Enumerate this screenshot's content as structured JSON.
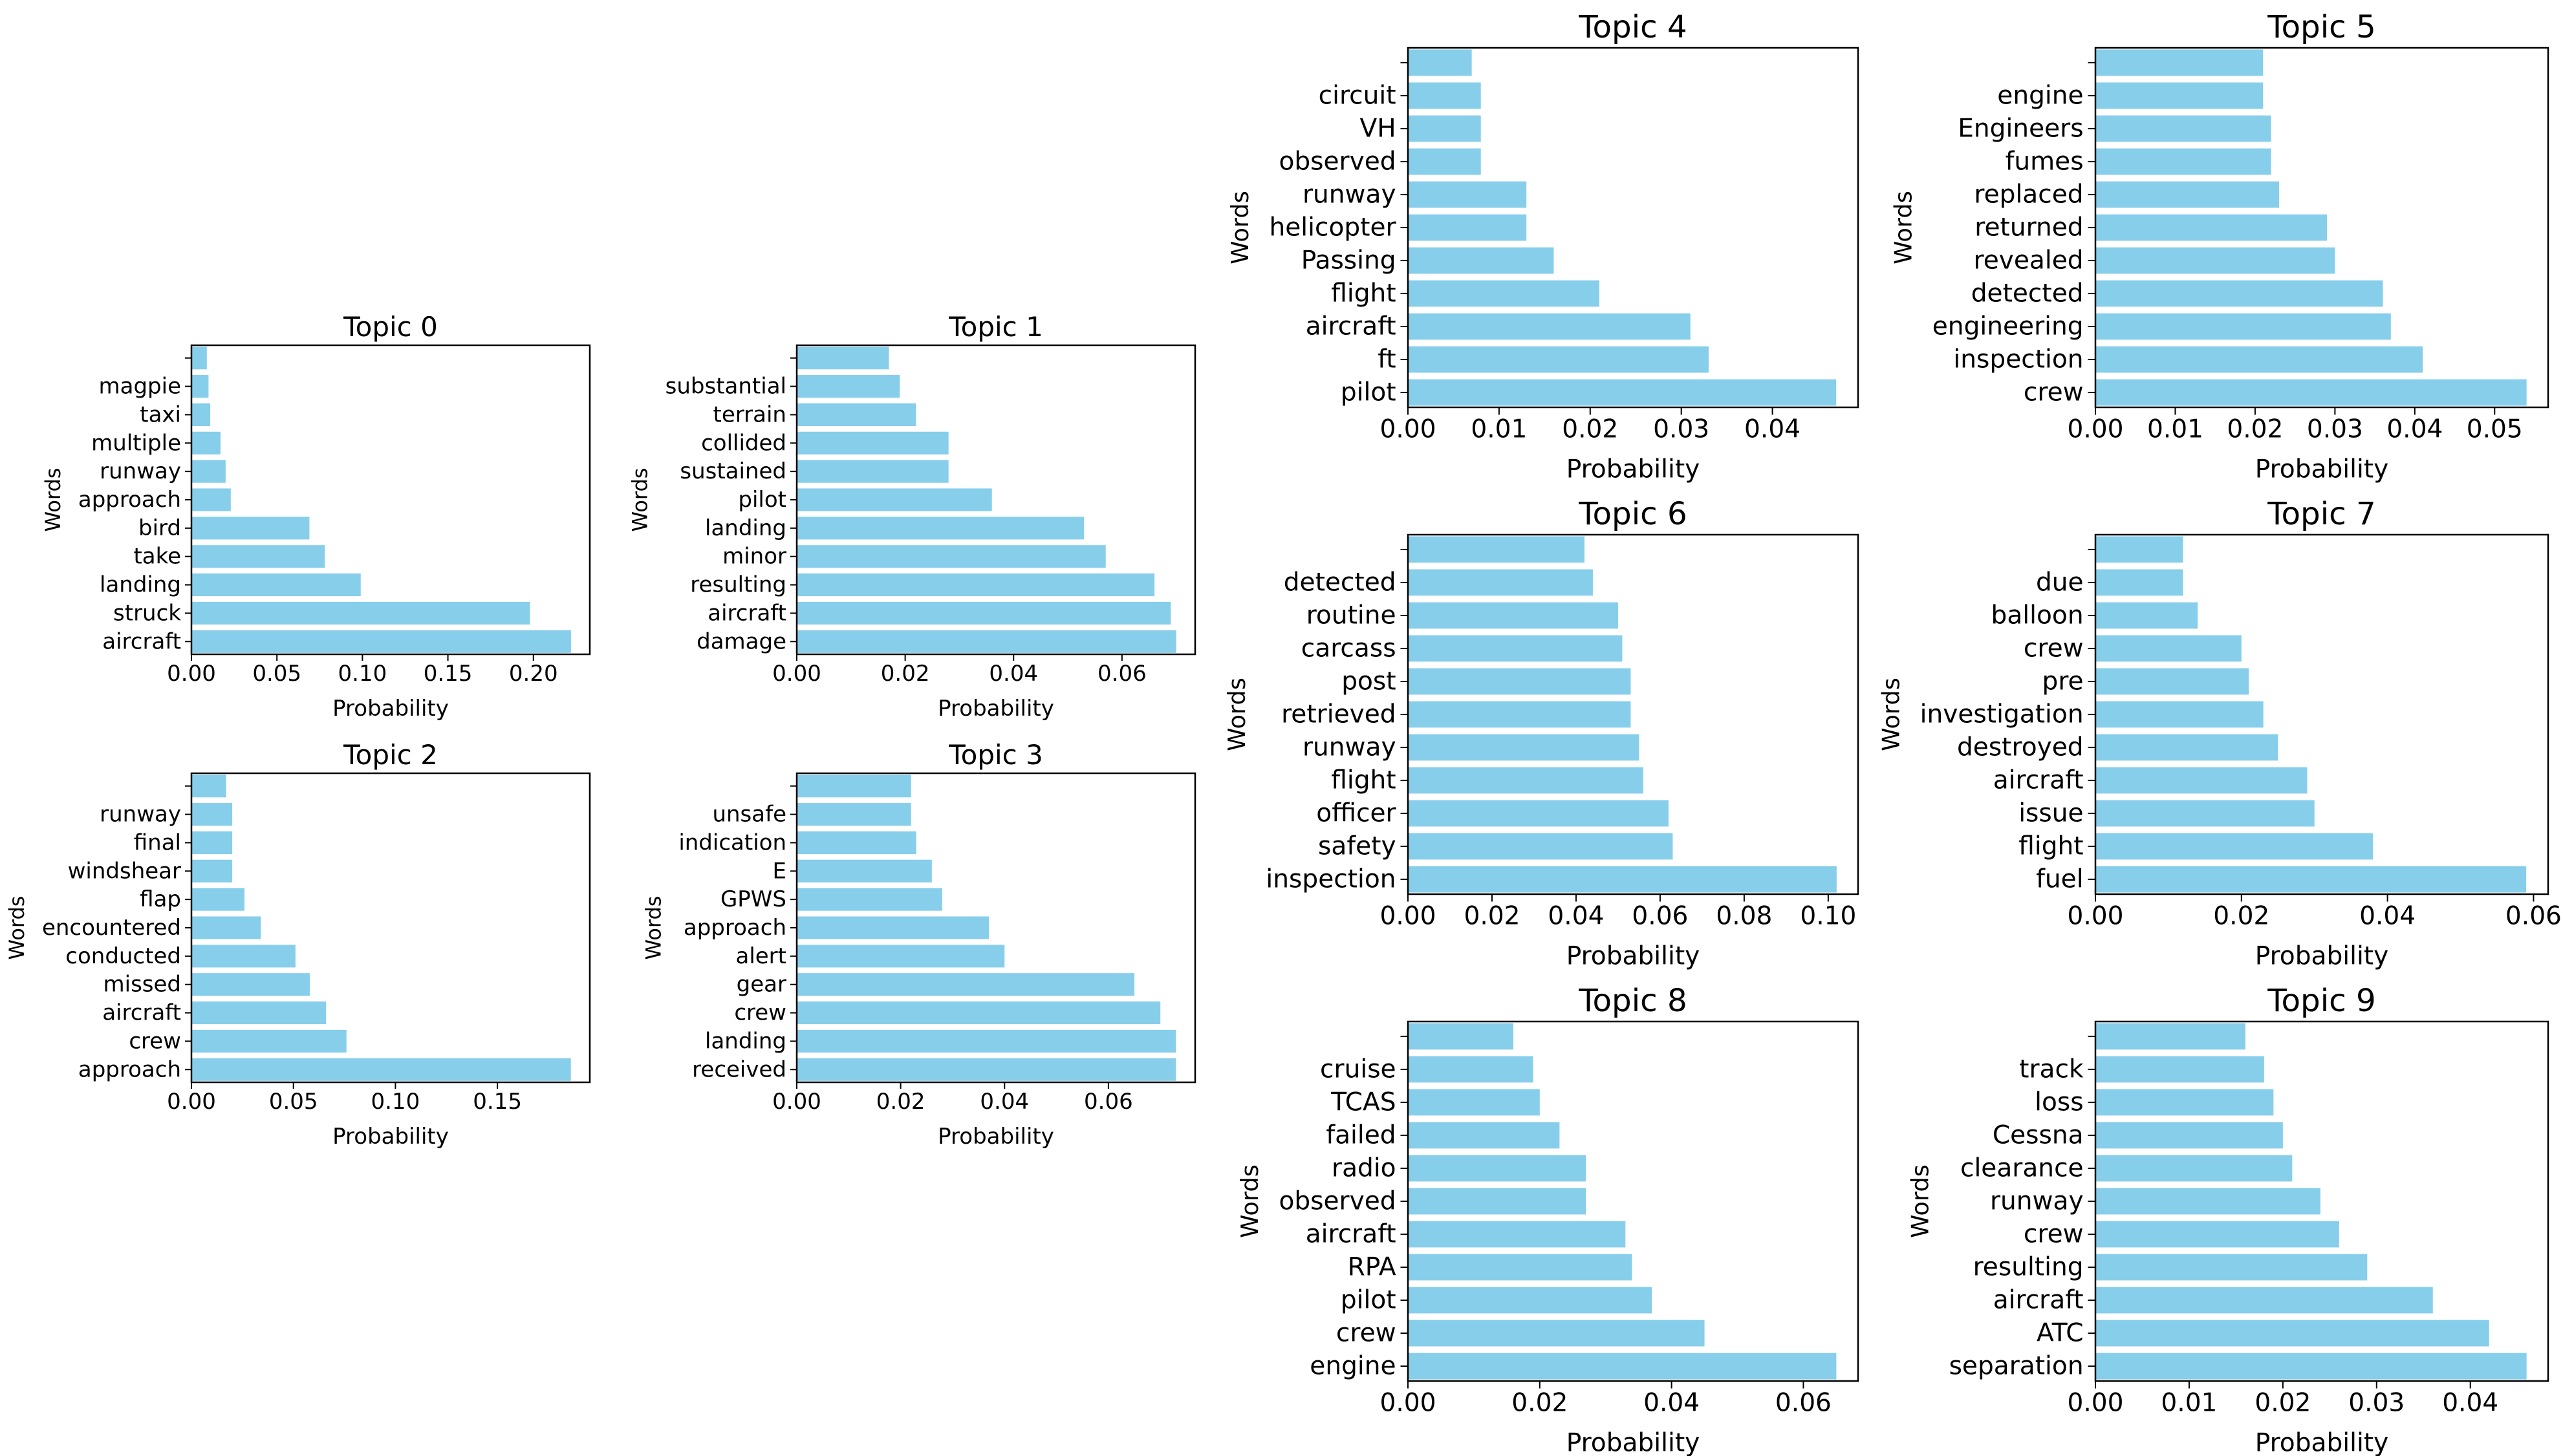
{
  "chart_data": [
    {
      "type": "bar",
      "orientation": "horizontal",
      "title": "Topic 0",
      "xlabel": "Probability",
      "ylabel": "Words",
      "categories": [
        "aircraft",
        "struck",
        "landing",
        "take",
        "bird",
        "approach",
        "runway",
        "multiple",
        "taxi",
        "magpie",
        ""
      ],
      "values": [
        0.222,
        0.198,
        0.099,
        0.078,
        0.069,
        0.023,
        0.02,
        0.017,
        0.011,
        0.01,
        0.009
      ],
      "xticks": [
        0.0,
        0.05,
        0.1,
        0.15,
        0.2
      ],
      "xtick_labels": [
        "0.00",
        "0.05",
        "0.10",
        "0.15",
        "0.20"
      ],
      "xlim": [
        0,
        0.233
      ],
      "bar_color": "#87CEEB",
      "grid": false
    },
    {
      "type": "bar",
      "orientation": "horizontal",
      "title": "Topic 1",
      "xlabel": "Probability",
      "ylabel": "Words",
      "categories": [
        "damage",
        "aircraft",
        "resulting",
        "minor",
        "landing",
        "pilot",
        "sustained",
        "collided",
        "terrain",
        "substantial",
        ""
      ],
      "values": [
        0.07,
        0.069,
        0.066,
        0.057,
        0.053,
        0.036,
        0.028,
        0.028,
        0.022,
        0.019,
        0.017
      ],
      "xticks": [
        0.0,
        0.02,
        0.04,
        0.06
      ],
      "xtick_labels": [
        "0.00",
        "0.02",
        "0.04",
        "0.06"
      ],
      "xlim": [
        0,
        0.0735
      ],
      "bar_color": "#87CEEB",
      "grid": false
    },
    {
      "type": "bar",
      "orientation": "horizontal",
      "title": "Topic 2",
      "xlabel": "Probability",
      "ylabel": "Words",
      "categories": [
        "approach",
        "crew",
        "aircraft",
        "missed",
        "conducted",
        "encountered",
        "flap",
        "windshear",
        "final",
        "runway",
        ""
      ],
      "values": [
        0.186,
        0.076,
        0.066,
        0.058,
        0.051,
        0.034,
        0.026,
        0.02,
        0.02,
        0.02,
        0.017
      ],
      "xticks": [
        0.0,
        0.05,
        0.1,
        0.15
      ],
      "xtick_labels": [
        "0.00",
        "0.05",
        "0.10",
        "0.15"
      ],
      "xlim": [
        0,
        0.1953
      ],
      "bar_color": "#87CEEB",
      "grid": false
    },
    {
      "type": "bar",
      "orientation": "horizontal",
      "title": "Topic 3",
      "xlabel": "Probability",
      "ylabel": "Words",
      "categories": [
        "received",
        "landing",
        "crew",
        "gear",
        "alert",
        "approach",
        "GPWS",
        "E",
        "indication",
        "unsafe",
        ""
      ],
      "values": [
        0.073,
        0.073,
        0.07,
        0.065,
        0.04,
        0.037,
        0.028,
        0.026,
        0.023,
        0.022,
        0.022
      ],
      "xticks": [
        0.0,
        0.02,
        0.04,
        0.06
      ],
      "xtick_labels": [
        "0.00",
        "0.02",
        "0.04",
        "0.06"
      ],
      "xlim": [
        0,
        0.0767
      ],
      "bar_color": "#87CEEB",
      "grid": false
    },
    {
      "type": "bar",
      "orientation": "horizontal",
      "title": "Topic 4",
      "xlabel": "Probability",
      "ylabel": "Words",
      "categories": [
        "pilot",
        "ft",
        "aircraft",
        "flight",
        "Passing",
        "helicopter",
        "runway",
        "observed",
        "VH",
        "circuit",
        ""
      ],
      "values": [
        0.047,
        0.033,
        0.031,
        0.021,
        0.016,
        0.013,
        0.013,
        0.008,
        0.008,
        0.008,
        0.007
      ],
      "xticks": [
        0.0,
        0.01,
        0.02,
        0.03,
        0.04
      ],
      "xtick_labels": [
        "0.00",
        "0.01",
        "0.02",
        "0.03",
        "0.04"
      ],
      "xlim": [
        0,
        0.0494
      ],
      "bar_color": "#87CEEB",
      "grid": false
    },
    {
      "type": "bar",
      "orientation": "horizontal",
      "title": "Topic 5",
      "xlabel": "Probability",
      "ylabel": "Words",
      "categories": [
        "crew",
        "inspection",
        "engineering",
        "detected",
        "revealed",
        "returned",
        "replaced",
        "fumes",
        "Engineers",
        "engine",
        ""
      ],
      "values": [
        0.054,
        0.041,
        0.037,
        0.036,
        0.03,
        0.029,
        0.023,
        0.022,
        0.022,
        0.021,
        0.021
      ],
      "xticks": [
        0.0,
        0.01,
        0.02,
        0.03,
        0.04,
        0.05
      ],
      "xtick_labels": [
        "0.00",
        "0.01",
        "0.02",
        "0.03",
        "0.04",
        "0.05"
      ],
      "xlim": [
        0,
        0.0567
      ],
      "bar_color": "#87CEEB",
      "grid": false
    },
    {
      "type": "bar",
      "orientation": "horizontal",
      "title": "Topic 6",
      "xlabel": "Probability",
      "ylabel": "Words",
      "categories": [
        "inspection",
        "safety",
        "officer",
        "flight",
        "runway",
        "retrieved",
        "post",
        "carcass",
        "routine",
        "detected",
        ""
      ],
      "values": [
        0.102,
        0.063,
        0.062,
        0.056,
        0.055,
        0.053,
        0.053,
        0.051,
        0.05,
        0.044,
        0.042
      ],
      "xticks": [
        0.0,
        0.02,
        0.04,
        0.06,
        0.08,
        0.1
      ],
      "xtick_labels": [
        "0.00",
        "0.02",
        "0.04",
        "0.06",
        "0.08",
        "0.10"
      ],
      "xlim": [
        0,
        0.1071
      ],
      "bar_color": "#87CEEB",
      "grid": false
    },
    {
      "type": "bar",
      "orientation": "horizontal",
      "title": "Topic 7",
      "xlabel": "Probability",
      "ylabel": "Words",
      "categories": [
        "fuel",
        "flight",
        "issue",
        "aircraft",
        "destroyed",
        "investigation",
        "pre",
        "crew",
        "balloon",
        "due",
        ""
      ],
      "values": [
        0.059,
        0.038,
        0.03,
        0.029,
        0.025,
        0.023,
        0.021,
        0.02,
        0.014,
        0.012,
        0.012
      ],
      "xticks": [
        0.0,
        0.02,
        0.04,
        0.06
      ],
      "xtick_labels": [
        "0.00",
        "0.02",
        "0.04",
        "0.06"
      ],
      "xlim": [
        0,
        0.062
      ],
      "bar_color": "#87CEEB",
      "grid": false
    },
    {
      "type": "bar",
      "orientation": "horizontal",
      "title": "Topic 8",
      "xlabel": "Probability",
      "ylabel": "Words",
      "categories": [
        "engine",
        "crew",
        "pilot",
        "RPA",
        "aircraft",
        "observed",
        "radio",
        "failed",
        "TCAS",
        "cruise",
        ""
      ],
      "values": [
        0.065,
        0.045,
        0.037,
        0.034,
        0.033,
        0.027,
        0.027,
        0.023,
        0.02,
        0.019,
        0.016
      ],
      "xticks": [
        0.0,
        0.02,
        0.04,
        0.06
      ],
      "xtick_labels": [
        "0.00",
        "0.02",
        "0.04",
        "0.06"
      ],
      "xlim": [
        0,
        0.0683
      ],
      "bar_color": "#87CEEB",
      "grid": false
    },
    {
      "type": "bar",
      "orientation": "horizontal",
      "title": "Topic 9",
      "xlabel": "Probability",
      "ylabel": "Words",
      "categories": [
        "separation",
        "ATC",
        "aircraft",
        "resulting",
        "crew",
        "runway",
        "clearance",
        "Cessna",
        "loss",
        "track",
        ""
      ],
      "values": [
        0.046,
        0.042,
        0.036,
        0.029,
        0.026,
        0.024,
        0.021,
        0.02,
        0.019,
        0.018,
        0.016
      ],
      "xticks": [
        0.0,
        0.01,
        0.02,
        0.03,
        0.04
      ],
      "xtick_labels": [
        "0.00",
        "0.01",
        "0.02",
        "0.03",
        "0.04"
      ],
      "xlim": [
        0,
        0.0483
      ],
      "bar_color": "#87CEEB",
      "grid": false
    }
  ]
}
